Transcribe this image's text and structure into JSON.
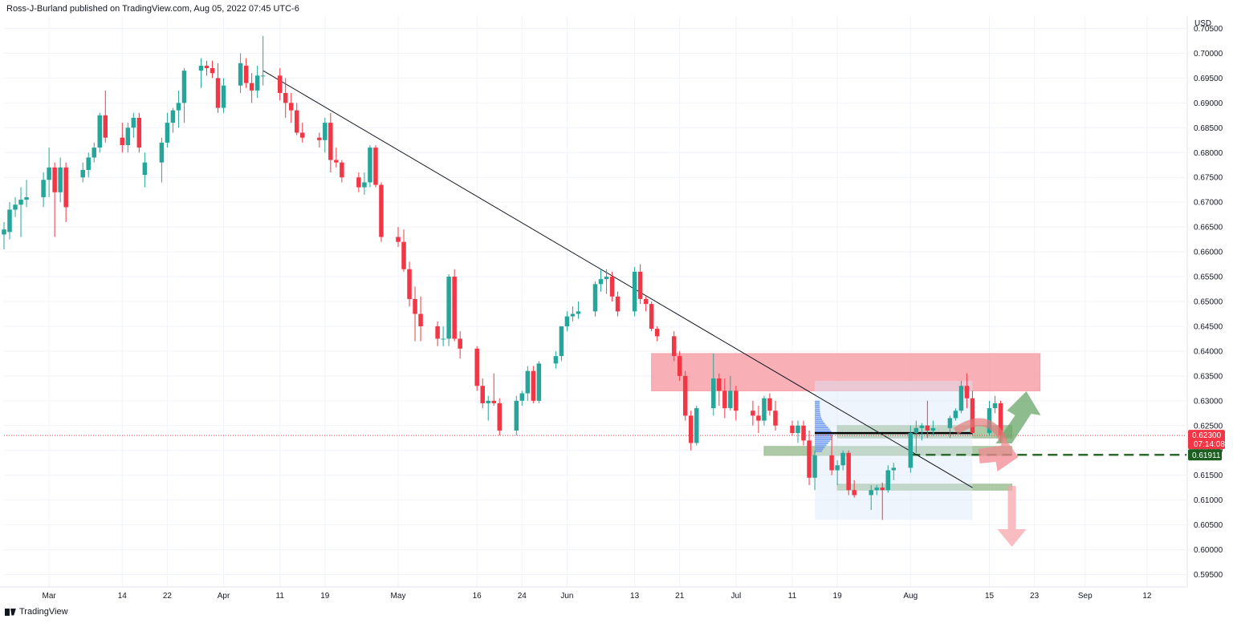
{
  "header": {
    "text": "Ross-J-Burland published on TradingView.com, Aug 05, 2022 07:45 UTC-6"
  },
  "footer": {
    "text": "TradingView"
  },
  "axis": {
    "currency": "USD"
  },
  "colors": {
    "up": "#26a69a",
    "down": "#f23645",
    "red_zone": "#f7a1a9",
    "green_zone": "#9fbf95",
    "dashed": "#2e6b2e",
    "price_tag": "#f23645",
    "level_tag": "#1b5e20"
  },
  "chart_data": {
    "type": "candlestick",
    "ylim": [
      0.5925,
      0.7075
    ],
    "y_ticks": [
      "0.70500",
      "0.70000",
      "0.69500",
      "0.69000",
      "0.68500",
      "0.68000",
      "0.67500",
      "0.67000",
      "0.66500",
      "0.66000",
      "0.65500",
      "0.65000",
      "0.64500",
      "0.64000",
      "0.63500",
      "0.63000",
      "0.62500",
      "0.62000",
      "0.61500",
      "0.61000",
      "0.60500",
      "0.60000",
      "0.59500"
    ],
    "x_ticks": [
      {
        "label": "Mar",
        "date": "2022-03-01"
      },
      {
        "label": "14",
        "date": "2022-03-14"
      },
      {
        "label": "22",
        "date": "2022-03-22"
      },
      {
        "label": "Apr",
        "date": "2022-04-01"
      },
      {
        "label": "11",
        "date": "2022-04-11"
      },
      {
        "label": "19",
        "date": "2022-04-19"
      },
      {
        "label": "May",
        "date": "2022-05-02"
      },
      {
        "label": "16",
        "date": "2022-05-16"
      },
      {
        "label": "24",
        "date": "2022-05-24"
      },
      {
        "label": "Jun",
        "date": "2022-06-01"
      },
      {
        "label": "13",
        "date": "2022-06-13"
      },
      {
        "label": "21",
        "date": "2022-06-21"
      },
      {
        "label": "Jul",
        "date": "2022-07-01"
      },
      {
        "label": "11",
        "date": "2022-07-11"
      },
      {
        "label": "19",
        "date": "2022-07-19"
      },
      {
        "label": "Aug",
        "date": "2022-08-01"
      },
      {
        "label": "15",
        "date": "2022-08-15"
      },
      {
        "label": "23",
        "date": "2022-08-23"
      },
      {
        "label": "Sep",
        "date": "2022-09-01"
      },
      {
        "label": "12",
        "date": "2022-09-12"
      }
    ],
    "ohlc": [
      [
        "2022-02-21",
        0.6635,
        0.666,
        0.6605,
        0.6645
      ],
      [
        "2022-02-22",
        0.664,
        0.67,
        0.6625,
        0.6685
      ],
      [
        "2022-02-23",
        0.6685,
        0.671,
        0.667,
        0.6695
      ],
      [
        "2022-02-24",
        0.6695,
        0.673,
        0.663,
        0.6705
      ],
      [
        "2022-02-25",
        0.6705,
        0.6745,
        0.669,
        0.671
      ],
      [
        "2022-02-28",
        0.671,
        0.676,
        0.669,
        0.6745
      ],
      [
        "2022-03-01",
        0.6745,
        0.681,
        0.671,
        0.677
      ],
      [
        "2022-03-02",
        0.677,
        0.678,
        0.663,
        0.672
      ],
      [
        "2022-03-03",
        0.672,
        0.679,
        0.67,
        0.677
      ],
      [
        "2022-03-04",
        0.677,
        0.678,
        0.666,
        0.669
      ],
      [
        "2022-03-07",
        0.675,
        0.678,
        0.674,
        0.6765
      ],
      [
        "2022-03-08",
        0.6765,
        0.68,
        0.675,
        0.679
      ],
      [
        "2022-03-09",
        0.679,
        0.682,
        0.678,
        0.681
      ],
      [
        "2022-03-10",
        0.681,
        0.688,
        0.68,
        0.6875
      ],
      [
        "2022-03-11",
        0.6875,
        0.6925,
        0.682,
        0.683
      ],
      [
        "2022-03-14",
        0.683,
        0.686,
        0.68,
        0.6815
      ],
      [
        "2022-03-15",
        0.6815,
        0.686,
        0.68,
        0.685
      ],
      [
        "2022-03-16",
        0.685,
        0.688,
        0.683,
        0.687
      ],
      [
        "2022-03-17",
        0.687,
        0.688,
        0.68,
        0.681
      ],
      [
        "2022-03-18",
        0.6755,
        0.68,
        0.673,
        0.678
      ],
      [
        "2022-03-21",
        0.678,
        0.683,
        0.674,
        0.682
      ],
      [
        "2022-03-22",
        0.682,
        0.688,
        0.681,
        0.686
      ],
      [
        "2022-03-23",
        0.686,
        0.689,
        0.684,
        0.6885
      ],
      [
        "2022-03-24",
        0.6885,
        0.6925,
        0.685,
        0.69
      ],
      [
        "2022-03-25",
        0.69,
        0.697,
        0.686,
        0.6965
      ],
      [
        "2022-03-28",
        0.6965,
        0.699,
        0.693,
        0.6975
      ],
      [
        "2022-03-29",
        0.6975,
        0.6985,
        0.6955,
        0.697
      ],
      [
        "2022-03-30",
        0.697,
        0.6985,
        0.695,
        0.696
      ],
      [
        "2022-03-31",
        0.695,
        0.698,
        0.688,
        0.689
      ],
      [
        "2022-04-01",
        0.689,
        0.695,
        0.688,
        0.6935
      ],
      [
        "2022-04-04",
        0.6935,
        0.7,
        0.692,
        0.698
      ],
      [
        "2022-04-05",
        0.6975,
        0.699,
        0.693,
        0.694
      ],
      [
        "2022-04-06",
        0.694,
        0.696,
        0.69,
        0.6925
      ],
      [
        "2022-04-07",
        0.6925,
        0.6975,
        0.691,
        0.6955
      ],
      [
        "2022-04-08",
        0.6955,
        0.7035,
        0.6935,
        0.6955
      ],
      [
        "2022-04-11",
        0.6955,
        0.697,
        0.6905,
        0.692
      ],
      [
        "2022-04-12",
        0.692,
        0.695,
        0.687,
        0.69
      ],
      [
        "2022-04-13",
        0.69,
        0.692,
        0.686,
        0.6885
      ],
      [
        "2022-04-14",
        0.6885,
        0.69,
        0.6835,
        0.684
      ],
      [
        "2022-04-15",
        0.684,
        0.686,
        0.682,
        0.683
      ],
      [
        "2022-04-18",
        0.683,
        0.684,
        0.681,
        0.6825
      ],
      [
        "2022-04-19",
        0.6825,
        0.687,
        0.68,
        0.686
      ],
      [
        "2022-04-20",
        0.686,
        0.688,
        0.676,
        0.6785
      ],
      [
        "2022-04-21",
        0.6785,
        0.681,
        0.677,
        0.678
      ],
      [
        "2022-04-22",
        0.678,
        0.6785,
        0.674,
        0.675
      ],
      [
        "2022-04-25",
        0.675,
        0.676,
        0.672,
        0.673
      ],
      [
        "2022-04-26",
        0.673,
        0.676,
        0.6715,
        0.674
      ],
      [
        "2022-04-27",
        0.674,
        0.6815,
        0.673,
        0.681
      ],
      [
        "2022-04-28",
        0.681,
        0.6815,
        0.673,
        0.6735
      ],
      [
        "2022-04-29",
        0.6735,
        0.674,
        0.662,
        0.663
      ],
      [
        "2022-05-02",
        0.663,
        0.665,
        0.661,
        0.662
      ],
      [
        "2022-05-03",
        0.662,
        0.6645,
        0.656,
        0.6565
      ],
      [
        "2022-05-04",
        0.6565,
        0.658,
        0.649,
        0.6505
      ],
      [
        "2022-05-05",
        0.6505,
        0.653,
        0.642,
        0.6475
      ],
      [
        "2022-05-06",
        0.6475,
        0.651,
        0.642,
        0.645
      ],
      [
        "2022-05-09",
        0.645,
        0.646,
        0.641,
        0.6425
      ],
      [
        "2022-05-10",
        0.6425,
        0.645,
        0.641,
        0.6425
      ],
      [
        "2022-05-11",
        0.6425,
        0.6555,
        0.641,
        0.655
      ],
      [
        "2022-05-12",
        0.655,
        0.6565,
        0.642,
        0.6425
      ],
      [
        "2022-05-13",
        0.6425,
        0.644,
        0.6385,
        0.6405
      ],
      [
        "2022-05-16",
        0.6405,
        0.641,
        0.632,
        0.633
      ],
      [
        "2022-05-17",
        0.633,
        0.6345,
        0.6285,
        0.6295
      ],
      [
        "2022-05-18",
        0.6295,
        0.631,
        0.626,
        0.63
      ],
      [
        "2022-05-19",
        0.63,
        0.6355,
        0.629,
        0.6295
      ],
      [
        "2022-05-20",
        0.6295,
        0.6305,
        0.623,
        0.624
      ],
      [
        "2022-05-23",
        0.624,
        0.631,
        0.623,
        0.63
      ],
      [
        "2022-05-24",
        0.63,
        0.632,
        0.629,
        0.6315
      ],
      [
        "2022-05-25",
        0.6315,
        0.637,
        0.63,
        0.636
      ],
      [
        "2022-05-26",
        0.636,
        0.637,
        0.6295,
        0.63
      ],
      [
        "2022-05-27",
        0.63,
        0.638,
        0.6295,
        0.6375
      ],
      [
        "2022-05-30",
        0.6375,
        0.64,
        0.6365,
        0.639
      ],
      [
        "2022-05-31",
        0.639,
        0.645,
        0.638,
        0.645
      ],
      [
        "2022-06-01",
        0.645,
        0.648,
        0.644,
        0.647
      ],
      [
        "2022-06-02",
        0.647,
        0.649,
        0.646,
        0.6475
      ],
      [
        "2022-06-03",
        0.6475,
        0.65,
        0.6465,
        0.648
      ],
      [
        "2022-06-06",
        0.648,
        0.654,
        0.647,
        0.6535
      ],
      [
        "2022-06-07",
        0.6535,
        0.6565,
        0.652,
        0.6545
      ],
      [
        "2022-06-08",
        0.6545,
        0.6565,
        0.6515,
        0.655
      ],
      [
        "2022-06-09",
        0.655,
        0.656,
        0.65,
        0.651
      ],
      [
        "2022-06-10",
        0.651,
        0.652,
        0.647,
        0.648
      ],
      [
        "2022-06-13",
        0.648,
        0.657,
        0.647,
        0.656
      ],
      [
        "2022-06-14",
        0.656,
        0.6575,
        0.6495,
        0.6505
      ],
      [
        "2022-06-15",
        0.6505,
        0.651,
        0.648,
        0.6495
      ],
      [
        "2022-06-16",
        0.6495,
        0.65,
        0.644,
        0.6445
      ],
      [
        "2022-06-17",
        0.6445,
        0.645,
        0.642,
        0.643
      ],
      [
        "2022-06-20",
        0.643,
        0.644,
        0.638,
        0.639
      ],
      [
        "2022-06-21",
        0.639,
        0.64,
        0.634,
        0.635
      ],
      [
        "2022-06-22",
        0.635,
        0.636,
        0.626,
        0.627
      ],
      [
        "2022-06-23",
        0.627,
        0.628,
        0.62,
        0.6215
      ],
      [
        "2022-06-24",
        0.6215,
        0.629,
        0.621,
        0.6285
      ],
      [
        "2022-06-27",
        0.6285,
        0.6395,
        0.627,
        0.6345
      ],
      [
        "2022-06-28",
        0.6345,
        0.6355,
        0.629,
        0.632
      ],
      [
        "2022-06-29",
        0.632,
        0.6345,
        0.6265,
        0.6285
      ],
      [
        "2022-06-30",
        0.6285,
        0.635,
        0.628,
        0.632
      ],
      [
        "2022-07-01",
        0.632,
        0.633,
        0.626,
        0.628
      ],
      [
        "2022-07-04",
        0.628,
        0.63,
        0.625,
        0.627
      ],
      [
        "2022-07-05",
        0.627,
        0.629,
        0.6235,
        0.626
      ],
      [
        "2022-07-06",
        0.626,
        0.631,
        0.625,
        0.6305
      ],
      [
        "2022-07-07",
        0.6305,
        0.6315,
        0.627,
        0.628
      ],
      [
        "2022-07-08",
        0.628,
        0.63,
        0.624,
        0.625
      ],
      [
        "2022-07-11",
        0.625,
        0.626,
        0.623,
        0.6235
      ],
      [
        "2022-07-12",
        0.6235,
        0.626,
        0.6215,
        0.625
      ],
      [
        "2022-07-13",
        0.625,
        0.626,
        0.621,
        0.622
      ],
      [
        "2022-07-14",
        0.622,
        0.624,
        0.613,
        0.6145
      ],
      [
        "2022-07-15",
        0.6145,
        0.62,
        0.612,
        0.619
      ],
      [
        "2022-07-18",
        0.619,
        0.623,
        0.615,
        0.616
      ],
      [
        "2022-07-19",
        0.616,
        0.618,
        0.613,
        0.617
      ],
      [
        "2022-07-20",
        0.617,
        0.62,
        0.616,
        0.6195
      ],
      [
        "2022-07-21",
        0.6195,
        0.62,
        0.611,
        0.612
      ],
      [
        "2022-07-22",
        0.612,
        0.614,
        0.6105,
        0.611
      ],
      [
        "2022-07-25",
        0.611,
        0.613,
        0.608,
        0.612
      ],
      [
        "2022-07-26",
        0.612,
        0.613,
        0.611,
        0.6125
      ],
      [
        "2022-07-27",
        0.6125,
        0.6135,
        0.606,
        0.612
      ],
      [
        "2022-07-28",
        0.612,
        0.617,
        0.6115,
        0.616
      ],
      [
        "2022-07-29",
        0.616,
        0.6175,
        0.614,
        0.6165
      ],
      [
        "2022-08-01",
        0.6165,
        0.625,
        0.6155,
        0.6235
      ],
      [
        "2022-08-02",
        0.6235,
        0.626,
        0.6195,
        0.6245
      ],
      [
        "2022-08-03",
        0.6245,
        0.6255,
        0.622,
        0.625
      ],
      [
        "2022-08-04",
        0.625,
        0.63,
        0.6225,
        0.624
      ],
      [
        "2022-08-05",
        0.624,
        0.626,
        0.623,
        0.6245
      ],
      [
        "2022-08-08",
        0.6245,
        0.627,
        0.6225,
        0.6265
      ],
      [
        "2022-08-09",
        0.6265,
        0.6285,
        0.626,
        0.628
      ],
      [
        "2022-08-10",
        0.628,
        0.634,
        0.6275,
        0.633
      ],
      [
        "2022-08-11",
        0.633,
        0.6355,
        0.6285,
        0.6305
      ],
      [
        "2022-08-12",
        0.6305,
        0.632,
        0.623,
        0.6235
      ],
      [
        "2022-08-15",
        0.6235,
        0.63,
        0.623,
        0.6285
      ],
      [
        "2022-08-16",
        0.6285,
        0.631,
        0.6275,
        0.6295
      ],
      [
        "2022-08-17",
        0.6295,
        0.63,
        0.6215,
        0.623
      ]
    ],
    "last_price": {
      "value": "0.62300",
      "countdown": "07:14:08"
    },
    "level_tag": {
      "value": "0.61911"
    },
    "trendline": {
      "from": [
        "2022-04-08",
        0.6965
      ],
      "to": [
        "2022-08-12",
        0.6125
      ]
    },
    "zones": [
      {
        "name": "resistance-zone",
        "color": "#f7a1a9",
        "x0": "2022-06-16",
        "x1": "2022-08-24",
        "y0": 0.632,
        "y1": 0.6395
      },
      {
        "name": "support-zone-upper",
        "color": "#9fbf95",
        "x0": "2022-07-19",
        "x1": "2022-08-19",
        "y0": 0.6225,
        "y1": 0.625
      },
      {
        "name": "support-zone-mid",
        "color": "#9fbf95",
        "x0": "2022-07-06",
        "x1": "2022-08-19",
        "y0": 0.619,
        "y1": 0.6208
      },
      {
        "name": "support-zone-lower",
        "color": "#9fbf95",
        "x0": "2022-07-19",
        "x1": "2022-08-19",
        "y0": 0.612,
        "y1": 0.6132
      }
    ],
    "dashed_level": {
      "value": 0.6191
    }
  }
}
